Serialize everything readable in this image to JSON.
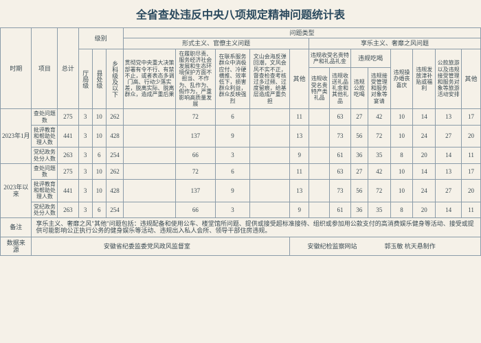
{
  "title": "全省查处违反中央八项规定精神问题统计表",
  "headers": {
    "period": "时期",
    "item": "项目",
    "total": "总计",
    "level": "级别",
    "lv1": "厅局级",
    "lv2": "县处级",
    "lv3": "乡科级及以下",
    "ptype": "问题类型",
    "cat_a": "形式主义、官僚主义问题",
    "cat_b": "享乐主义、奢靡之风问题",
    "a1": "贯彻党中央重大决策部署有令不行、有禁不止，或者表态多调门高、行动少落实差，脱离实际、脱离群众，造成严重后果",
    "a2": "在履职尽责、服务经济社会发展和生态环境保护方面不担当、不作为、乱作为、假作为，严重影响高质量发展",
    "a3": "在联系服务群众中消极应付、冷硬横推、效率低下，损害群众利益，群众反映强烈",
    "a4": "文山会海反弹回潮，文风会风不实不正，督查检查考核过多过频、过度留痕，给基层造成严重负担",
    "a5": "其他",
    "b1": "违规收受名贵特产和礼品礼金",
    "b1a": "违规收受名贵特产类礼品",
    "b1b": "违规收送礼品礼金和其他礼品",
    "b2": "违规吃喝",
    "b2a": "违规公款吃喝",
    "b2b": "违规接受管理和服务对象等宴请",
    "b3": "违规操办婚丧喜庆",
    "b4": "违规发放津补贴或福利",
    "b5": "公款旅游以及违规接受管理和服务对象等旅游活动安排",
    "b6": "其他"
  },
  "periods": [
    {
      "label": "2023年1月",
      "rows": [
        {
          "item": "查处问题数",
          "total": "275",
          "lv1": "3",
          "lv2": "10",
          "lv3": "262",
          "a1": "",
          "a2": "72",
          "a3": "6",
          "a4": "",
          "a5": "11",
          "b1a": "",
          "b1b": "63",
          "b2a": "27",
          "b2b": "42",
          "b3": "10",
          "b4": "14",
          "b5": "13",
          "b6": "17"
        },
        {
          "item": "批评教育和帮助处理人数",
          "total": "441",
          "lv1": "3",
          "lv2": "10",
          "lv3": "428",
          "a1": "",
          "a2": "137",
          "a3": "9",
          "a4": "",
          "a5": "13",
          "b1a": "",
          "b1b": "73",
          "b2a": "56",
          "b2b": "72",
          "b3": "10",
          "b4": "24",
          "b5": "27",
          "b6": "20"
        },
        {
          "item": "党纪政务处分人数",
          "total": "263",
          "lv1": "3",
          "lv2": "6",
          "lv3": "254",
          "a1": "",
          "a2": "66",
          "a3": "3",
          "a4": "",
          "a5": "9",
          "b1a": "",
          "b1b": "61",
          "b2a": "36",
          "b2b": "35",
          "b3": "8",
          "b4": "20",
          "b5": "14",
          "b6": "11"
        }
      ]
    },
    {
      "label": "2023年以来",
      "rows": [
        {
          "item": "查处问题数",
          "total": "275",
          "lv1": "3",
          "lv2": "10",
          "lv3": "262",
          "a1": "",
          "a2": "72",
          "a3": "6",
          "a4": "",
          "a5": "11",
          "b1a": "",
          "b1b": "63",
          "b2a": "27",
          "b2b": "42",
          "b3": "10",
          "b4": "14",
          "b5": "13",
          "b6": "17"
        },
        {
          "item": "批评教育和帮助处理人数",
          "total": "441",
          "lv1": "3",
          "lv2": "10",
          "lv3": "428",
          "a1": "",
          "a2": "137",
          "a3": "9",
          "a4": "",
          "a5": "13",
          "b1a": "",
          "b1b": "73",
          "b2a": "56",
          "b2b": "72",
          "b3": "10",
          "b4": "24",
          "b5": "27",
          "b6": "20"
        },
        {
          "item": "党纪政务处分人数",
          "total": "263",
          "lv1": "3",
          "lv2": "6",
          "lv3": "254",
          "a1": "",
          "a2": "66",
          "a3": "3",
          "a4": "",
          "a5": "9",
          "b1a": "",
          "b1b": "61",
          "b2a": "36",
          "b2b": "35",
          "b3": "8",
          "b4": "20",
          "b5": "14",
          "b6": "11"
        }
      ]
    }
  ],
  "notes": {
    "label": "备注",
    "text": "享乐主义、奢靡之风\"其他\"问题包括：违规配备和使用公车、楼堂馆所问题、提供或接受超标准接待、组织或参加用公款支付的高消费娱乐健身等活动、接受或提供可能影响公正执行公务的健身娱乐等活动、违规出入私人会所、领导干部住房违规。"
  },
  "source": {
    "label": "数据来源",
    "org": "安徽省纪委监委党风政风监督室",
    "site": "安徽纪检监察网站",
    "editors": "郭玉敏  杭天悬制作"
  }
}
